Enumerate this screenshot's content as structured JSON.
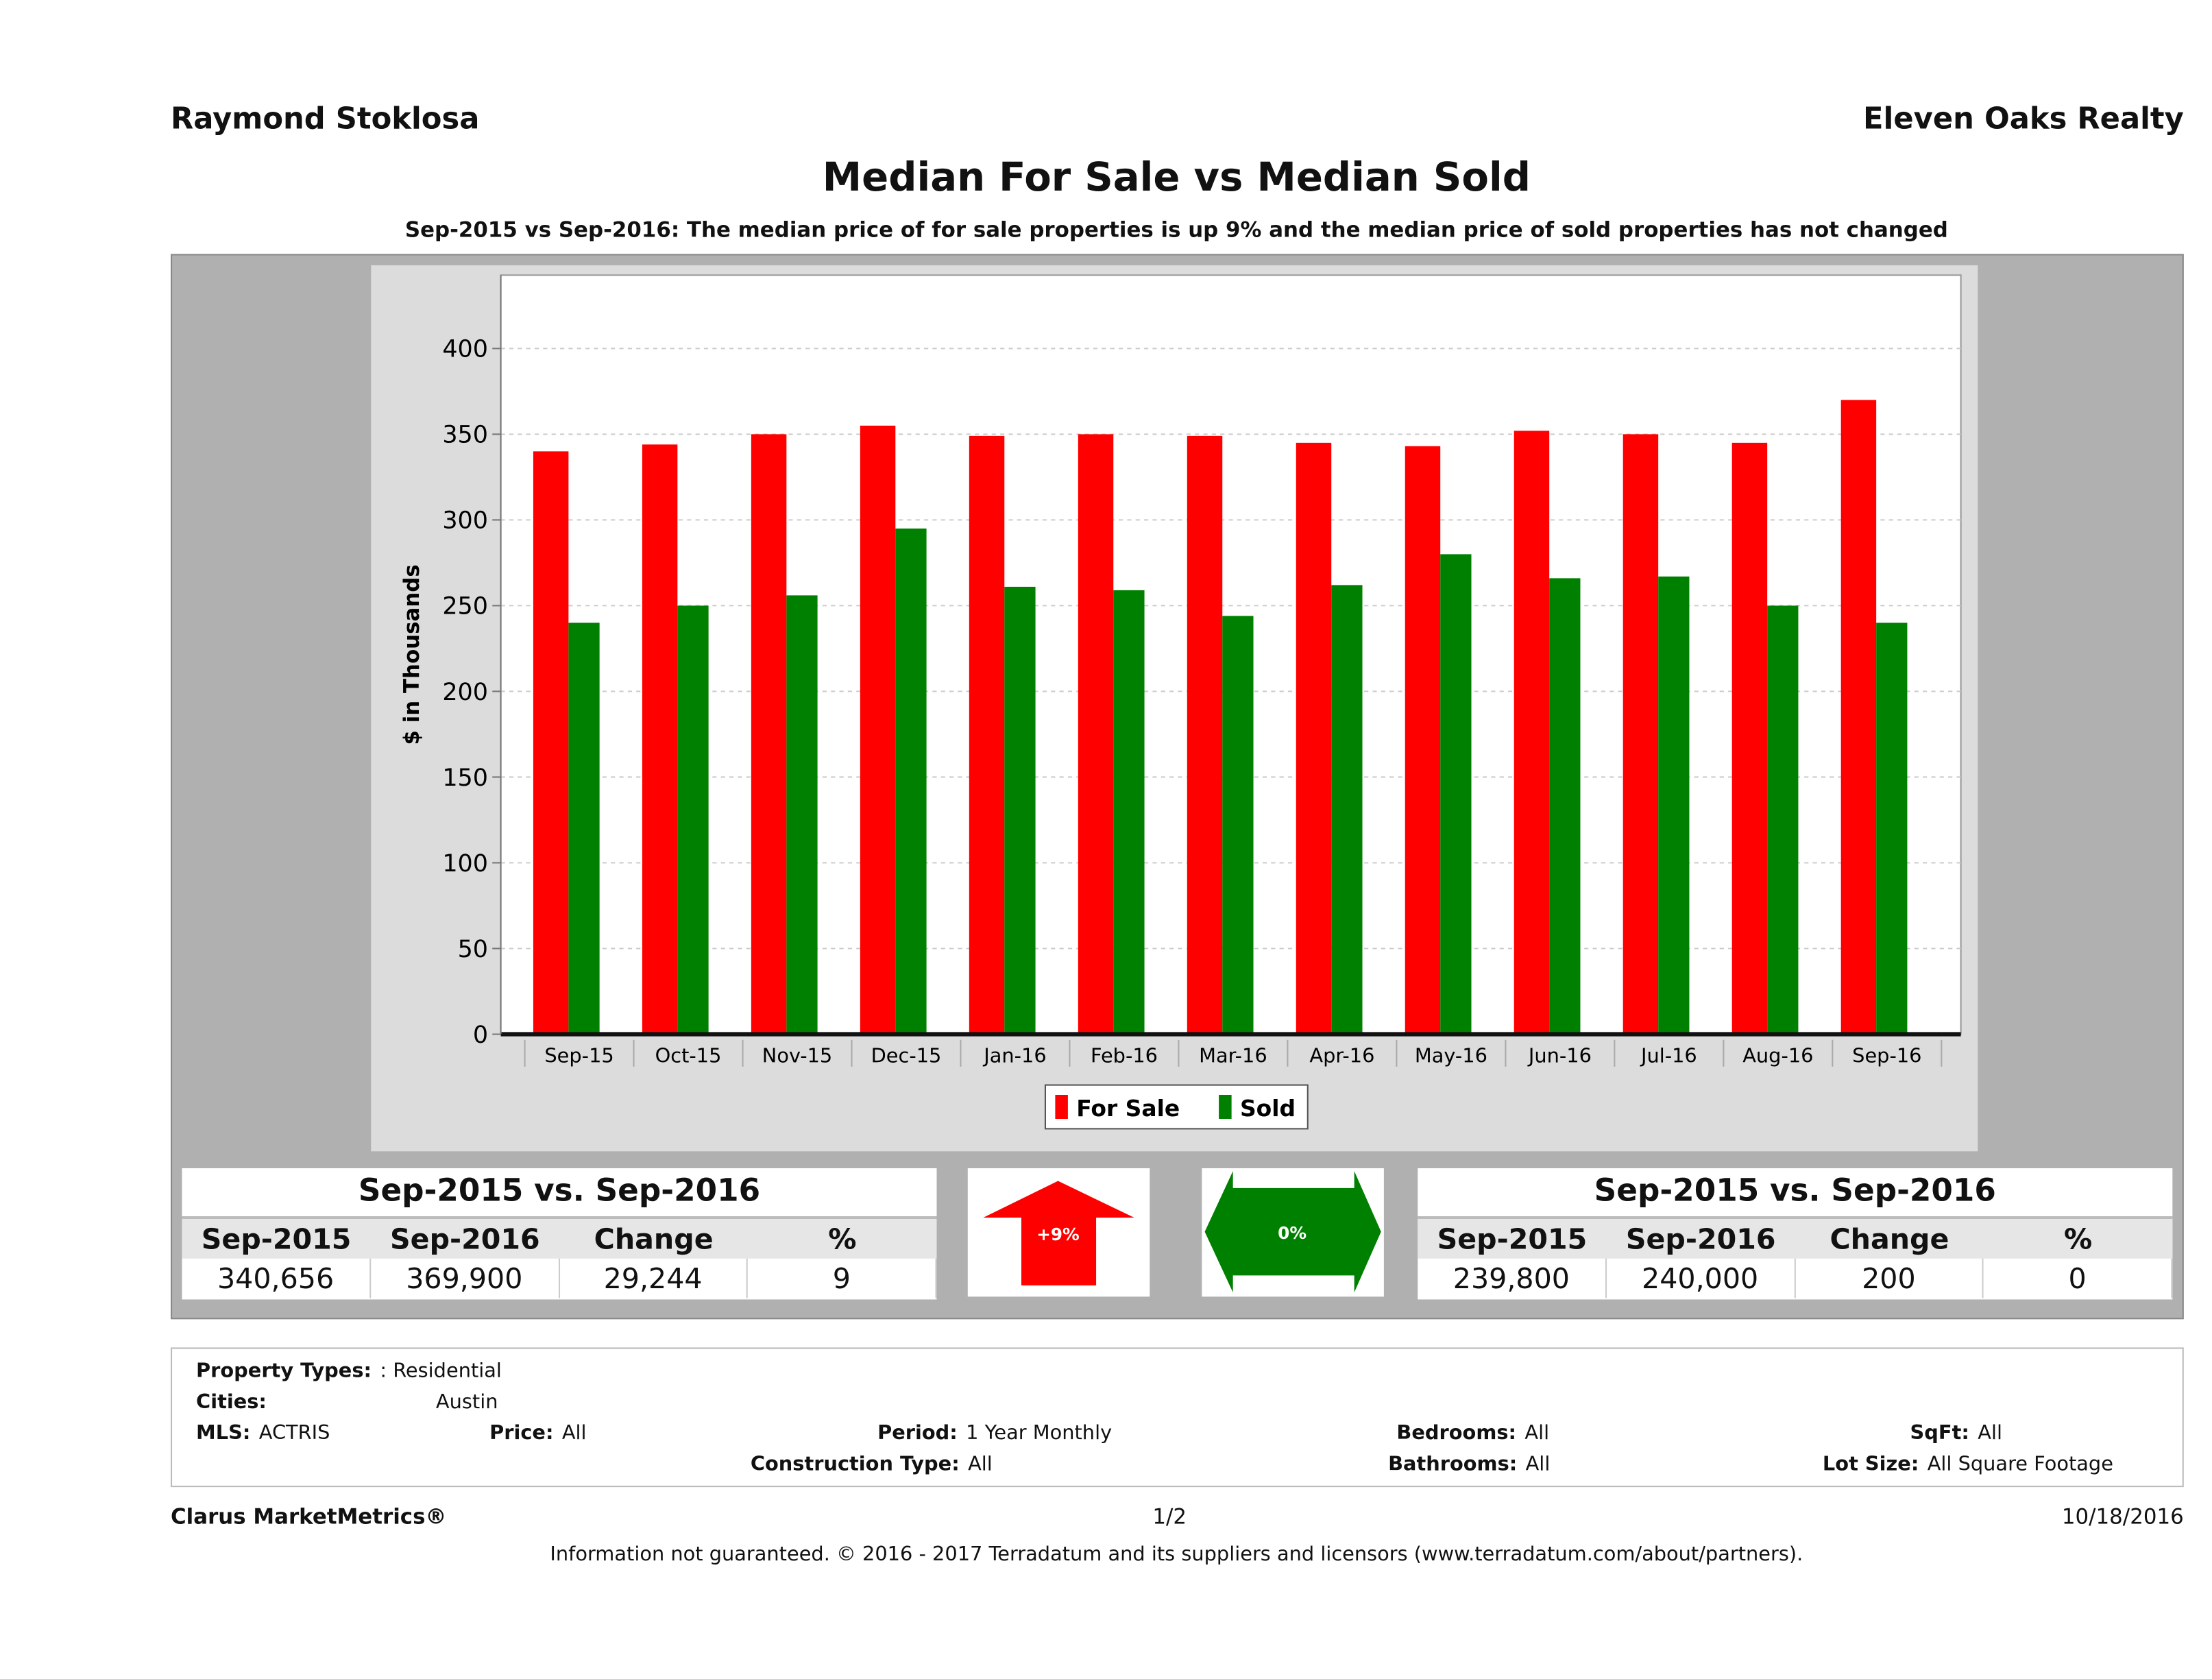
{
  "header": {
    "agent": "Raymond Stoklosa",
    "brokerage": "Eleven Oaks Realty",
    "title": "Median For Sale vs Median Sold",
    "subtitle": "Sep-2015 vs Sep-2016: The median price of for sale properties is up 9% and the median price of sold properties has not changed"
  },
  "chart_data": {
    "type": "bar",
    "title": "",
    "ylabel": "$ in Thousands",
    "xlabel": "",
    "ylim": [
      0,
      440
    ],
    "yticks": [
      "0",
      "50",
      "100",
      "150",
      "200",
      "250",
      "300",
      "350",
      "400"
    ],
    "grid": true,
    "legend_placement": "bottom",
    "categories": [
      "Sep-15",
      "Oct-15",
      "Nov-15",
      "Dec-15",
      "Jan-16",
      "Feb-16",
      "Mar-16",
      "Apr-16",
      "May-16",
      "Jun-16",
      "Jul-16",
      "Aug-16",
      "Sep-16"
    ],
    "series": [
      {
        "name": "For Sale",
        "color": "#ff0000",
        "values": [
          340,
          344,
          350,
          355,
          349,
          350,
          349,
          345,
          343,
          352,
          350,
          345,
          370
        ]
      },
      {
        "name": "Sold",
        "color": "#008000",
        "values": [
          240,
          250,
          256,
          295,
          261,
          259,
          244,
          262,
          280,
          266,
          267,
          250,
          240
        ]
      }
    ]
  },
  "for_sale_table": {
    "heading": "Sep-2015 vs. Sep-2016",
    "columns": [
      "Sep-2015",
      "Sep-2016",
      "Change",
      "%"
    ],
    "values": [
      "340,656",
      "369,900",
      "29,244",
      "9"
    ],
    "indicator": "+9%",
    "indicator_icon": "up-arrow-icon",
    "indicator_color": "#ff0000"
  },
  "sold_table": {
    "heading": "Sep-2015 vs. Sep-2016",
    "columns": [
      "Sep-2015",
      "Sep-2016",
      "Change",
      "%"
    ],
    "values": [
      "239,800",
      "240,000",
      "200",
      "0"
    ],
    "indicator": "0%",
    "indicator_icon": "left-right-arrow-icon",
    "indicator_color": "#008000"
  },
  "filters": {
    "property_types_label": "Property Types:",
    "property_types": ": Residential",
    "cities_label": "Cities:",
    "cities": "Austin",
    "mls_label": "MLS:",
    "mls": "ACTRIS",
    "price_label": "Price:",
    "price": "All",
    "period_label": "Period:",
    "period": "1 Year Monthly",
    "construction_label": "Construction Type:",
    "construction": "All",
    "bedrooms_label": "Bedrooms:",
    "bedrooms": "All",
    "bathrooms_label": "Bathrooms:",
    "bathrooms": "All",
    "sqft_label": "SqFt:",
    "sqft": "All",
    "lot_label": "Lot Size:",
    "lot": "All Square Footage"
  },
  "footer": {
    "brand": "Clarus MarketMetrics®",
    "page": "1/2",
    "date": "10/18/2016",
    "disclaimer": "Information not guaranteed. © 2016 - 2017 Terradatum and its suppliers and licensors (www.terradatum.com/about/partners)."
  }
}
